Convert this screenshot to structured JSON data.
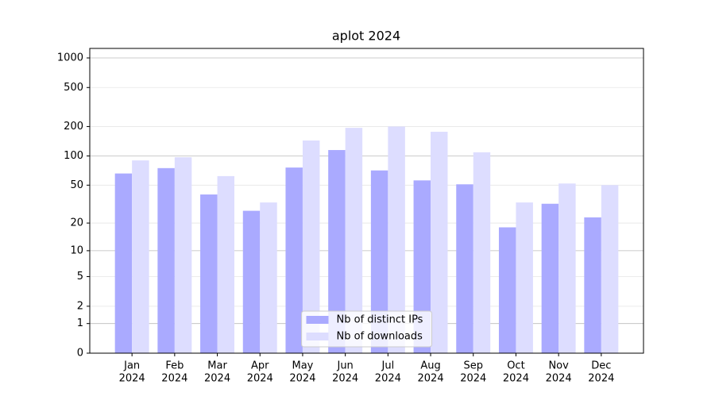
{
  "chart_data": {
    "type": "bar",
    "title": "aplot 2024",
    "categories": [
      [
        "Jan",
        "2024"
      ],
      [
        "Feb",
        "2024"
      ],
      [
        "Mar",
        "2024"
      ],
      [
        "Apr",
        "2024"
      ],
      [
        "May",
        "2024"
      ],
      [
        "Jun",
        "2024"
      ],
      [
        "Jul",
        "2024"
      ],
      [
        "Aug",
        "2024"
      ],
      [
        "Sep",
        "2024"
      ],
      [
        "Oct",
        "2024"
      ],
      [
        "Nov",
        "2024"
      ],
      [
        "Dec",
        "2024"
      ]
    ],
    "series": [
      {
        "name": "Nb of distinct IPs",
        "color": "#aaaaff",
        "values": [
          66,
          75,
          40,
          27,
          76,
          115,
          71,
          56,
          51,
          18,
          32,
          23
        ]
      },
      {
        "name": "Nb of downloads",
        "color": "#ddddff",
        "values": [
          90,
          97,
          62,
          33,
          144,
          194,
          200,
          177,
          109,
          33,
          52,
          50
        ]
      }
    ],
    "yscale": "log1p",
    "ylim": [
      0,
      1250
    ],
    "yticks": [
      0,
      1,
      2,
      5,
      10,
      20,
      50,
      100,
      200,
      500,
      1000
    ],
    "grid": true,
    "legend": "lower center"
  }
}
